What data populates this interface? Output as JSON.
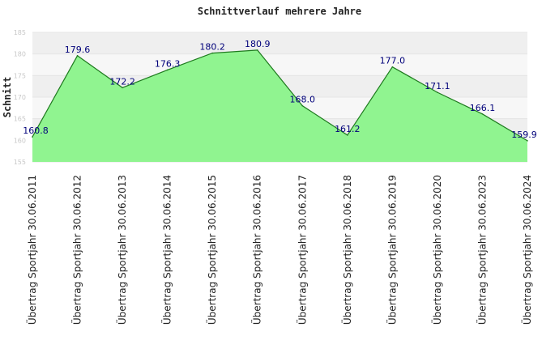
{
  "chart_data": {
    "type": "area",
    "title": "Schnittverlauf mehrere Jahre",
    "ylabel": "Schnitt",
    "xlabel": "",
    "categories": [
      "Übertrag Sportjahr 30.06.2011",
      "Übertrag Sportjahr 30.06.2012",
      "Übertrag Sportjahr 30.06.2013",
      "Übertrag Sportjahr 30.06.2014",
      "Übertrag Sportjahr 30.06.2015",
      "Übertrag Sportjahr 30.06.2016",
      "Übertrag Sportjahr 30.06.2017",
      "Übertrag Sportjahr 30.06.2018",
      "Übertrag Sportjahr 30.06.2019",
      "Übertrag Sportjahr 30.06.2020",
      "Übertrag Sportjahr 30.06.2023",
      "Übertrag Sportjahr 30.06.2024"
    ],
    "values": [
      160.8,
      179.6,
      172.2,
      176.3,
      180.2,
      180.9,
      168.0,
      161.2,
      177.0,
      171.1,
      166.1,
      159.9
    ],
    "data_labels": [
      "160.8",
      "179.6",
      "172.2",
      "176.3",
      "180.2",
      "180.9",
      "168.0",
      "161.2",
      "177.0",
      "171.1",
      "166.1",
      "159.9"
    ],
    "yticks": [
      155,
      160,
      165,
      170,
      175,
      180,
      185
    ],
    "ylim": [
      155,
      185
    ],
    "grid": true,
    "legend": "none",
    "colors": {
      "fill": "#90f490",
      "line": "#1e7a1e",
      "band_dark": "#efefef",
      "band_light": "#f7f7f7",
      "label": "#00007a"
    }
  }
}
